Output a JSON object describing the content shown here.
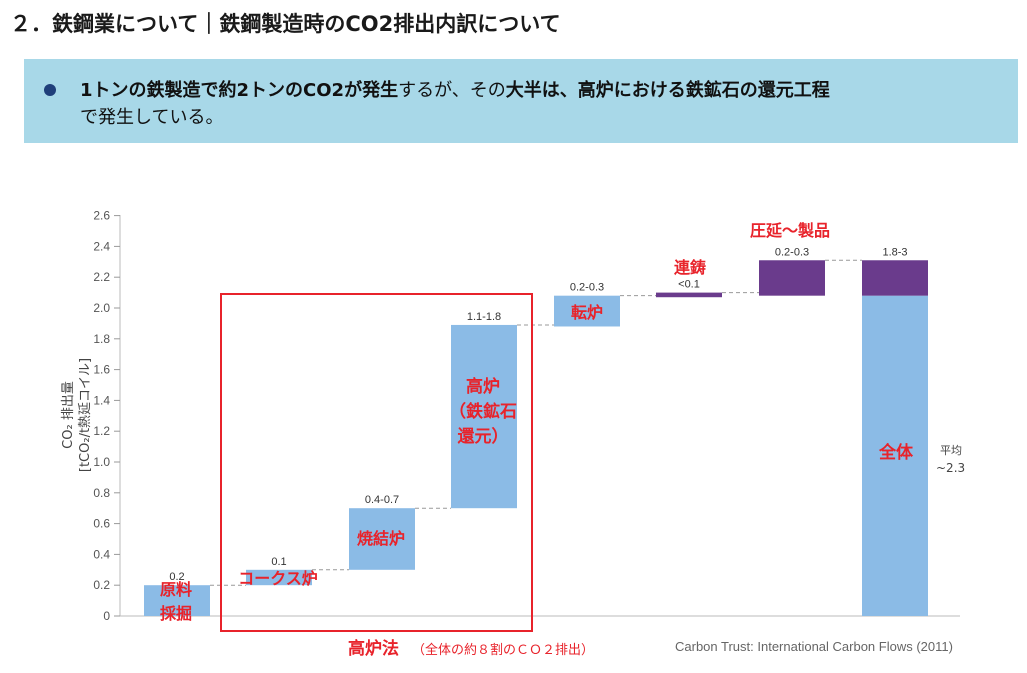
{
  "header": {
    "title": "２．鉄鋼業について｜鉄鋼製造時のCO2排出内訳について"
  },
  "callout": {
    "line1_bold_a": "1トンの鉄製造で約2トンのCO2が発生",
    "line1_plain": "するが、その",
    "line1_bold_b": "大半は、高炉における鉄鉱石の還元工程",
    "line2": "で発生している。"
  },
  "colors": {
    "bar_light": "#8bbbe6",
    "bar_dark": "#6a3b8c",
    "annotation": "#e8232b",
    "callout_bg": "#a8d8e8"
  },
  "chart_data": {
    "type": "bar",
    "subtype": "waterfall",
    "ylabel_line1": "CO₂ 排出量",
    "ylabel_line2": "[tCO₂/t熱延コイル]",
    "ylim": [
      0,
      2.6
    ],
    "yticks": [
      "0",
      "0.2",
      "0.4",
      "0.6",
      "0.8",
      "1.0",
      "1.2",
      "1.4",
      "1.6",
      "1.8",
      "2.0",
      "2.2",
      "2.4",
      "2.6"
    ],
    "grid": false,
    "bars": [
      {
        "label": "原料採掘",
        "data_label": "0.2",
        "base": 0,
        "top": 0.2,
        "color": "light"
      },
      {
        "label": "コークス炉",
        "data_label": "0.1",
        "base": 0.2,
        "top": 0.3,
        "color": "light"
      },
      {
        "label": "焼結炉",
        "data_label": "0.4-0.7",
        "base": 0.3,
        "top": 0.7,
        "color": "light"
      },
      {
        "label": "高炉（鉄鉱石還元）",
        "data_label": "1.1-1.8",
        "base": 0.7,
        "top": 1.89,
        "color": "light"
      },
      {
        "label": "転炉",
        "data_label": "0.2-0.3",
        "base": 1.88,
        "top": 2.08,
        "color": "light"
      },
      {
        "label": "連鋳",
        "data_label": "<0.1",
        "base": 2.07,
        "top": 2.1,
        "color": "dark"
      },
      {
        "label": "圧延～製品",
        "data_label": "0.2-0.3",
        "base": 2.08,
        "top": 2.31,
        "color": "dark"
      },
      {
        "label": "全体",
        "data_label": "1.8-3",
        "base": 0,
        "top": 2.08,
        "top2": 2.31,
        "color": "light"
      }
    ],
    "annotations": {
      "bf_group": "高炉法",
      "bf_group_note": "（全体の約８割のＣＯ２排出）",
      "average_label": "平均",
      "average_value": "~2.3"
    },
    "bar_names": {
      "b0_l1": "原料",
      "b0_l2": "採掘",
      "b1": "コークス炉",
      "b2": "焼結炉",
      "b3_l1": "高炉",
      "b3_l2": "（鉄鉱石",
      "b3_l3": "還元）",
      "b4": "転炉",
      "b5": "連鋳",
      "b6": "圧延～製品",
      "b7": "全体"
    },
    "source": "Carbon Trust: International Carbon Flows (2011)"
  }
}
